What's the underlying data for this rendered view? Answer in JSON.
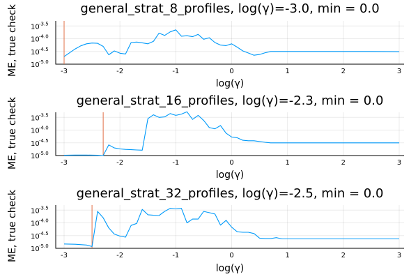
{
  "chart_data": [
    {
      "type": "line",
      "title": "general_strat_8_profiles, log(γ)=-3.0, min = 0.0",
      "xlabel": "log(γ)",
      "ylabel": "ME, true check",
      "xlim": [
        -3,
        3
      ],
      "xticks": [
        "-3",
        "-2",
        "-1",
        "0",
        "1",
        "2",
        "3"
      ],
      "ylim": [
        -5.0,
        -3.3
      ],
      "yticks": [
        {
          "base": "10",
          "exp": "-3.5"
        },
        {
          "base": "10",
          "exp": "-4.0"
        },
        {
          "base": "10",
          "exp": "-4.5"
        },
        {
          "base": "10",
          "exp": "-5.0"
        }
      ],
      "grid": true,
      "series_color": "#009AFA",
      "marker_color": "#E26F46",
      "vline_x": -3.0,
      "x": [
        -3.0,
        -2.9,
        -2.8,
        -2.7,
        -2.6,
        -2.5,
        -2.4,
        -2.3,
        -2.2,
        -2.1,
        -2.0,
        -1.9,
        -1.8,
        -1.7,
        -1.6,
        -1.5,
        -1.4,
        -1.3,
        -1.2,
        -1.1,
        -1.0,
        -0.9,
        -0.8,
        -0.7,
        -0.6,
        -0.5,
        -0.4,
        -0.3,
        -0.2,
        -0.1,
        0.0,
        0.1,
        0.2,
        0.3,
        0.4,
        0.5,
        0.6,
        0.7,
        0.8,
        1.0,
        1.5,
        2.0,
        2.5,
        3.0
      ],
      "y": [
        -4.7,
        -4.55,
        -4.4,
        -4.28,
        -4.2,
        -4.17,
        -4.18,
        -4.3,
        -4.63,
        -4.48,
        -4.57,
        -4.6,
        -4.15,
        -4.13,
        -4.16,
        -4.2,
        -4.1,
        -3.78,
        -3.87,
        -3.73,
        -3.65,
        -3.9,
        -3.88,
        -3.92,
        -3.83,
        -4.02,
        -3.96,
        -4.15,
        -4.25,
        -4.27,
        -4.2,
        -4.33,
        -4.48,
        -4.56,
        -4.65,
        -4.62,
        -4.55,
        -4.5,
        -4.5,
        -4.5,
        -4.5,
        -4.5,
        -4.5,
        -4.51
      ]
    },
    {
      "type": "line",
      "title": "general_strat_16_profiles, log(γ)=-2.3, min = 0.0",
      "xlabel": "log(γ)",
      "ylabel": "ME, true check",
      "xlim": [
        -3,
        3
      ],
      "xticks": [
        "-3",
        "-2",
        "-1",
        "0",
        "1",
        "2",
        "3"
      ],
      "ylim": [
        -5.0,
        -3.3
      ],
      "yticks": [
        {
          "base": "10",
          "exp": "-3.5"
        },
        {
          "base": "10",
          "exp": "-4.0"
        },
        {
          "base": "10",
          "exp": "-4.5"
        },
        {
          "base": "10",
          "exp": "-5.0"
        }
      ],
      "grid": true,
      "series_color": "#009AFA",
      "marker_color": "#E26F46",
      "vline_x": -2.3,
      "x": [
        -3.0,
        -2.8,
        -2.6,
        -2.4,
        -2.3,
        -2.2,
        -2.1,
        -2.0,
        -1.9,
        -1.8,
        -1.7,
        -1.6,
        -1.5,
        -1.4,
        -1.3,
        -1.2,
        -1.1,
        -1.0,
        -0.9,
        -0.8,
        -0.7,
        -0.6,
        -0.5,
        -0.4,
        -0.3,
        -0.2,
        -0.1,
        0.0,
        0.1,
        0.2,
        0.3,
        0.4,
        0.5,
        0.6,
        0.7,
        0.8,
        1.0,
        1.5,
        2.0,
        2.5,
        3.0
      ],
      "y": [
        -4.99,
        -4.98,
        -4.98,
        -4.99,
        -5.0,
        -4.58,
        -4.7,
        -4.74,
        -4.76,
        -4.77,
        -4.78,
        -4.79,
        -3.55,
        -3.4,
        -3.5,
        -3.48,
        -3.35,
        -3.42,
        -3.37,
        -3.28,
        -3.58,
        -3.42,
        -3.62,
        -3.9,
        -3.95,
        -3.82,
        -4.12,
        -4.27,
        -4.3,
        -4.4,
        -4.42,
        -4.42,
        -4.45,
        -4.48,
        -4.5,
        -4.5,
        -4.5,
        -4.5,
        -4.5,
        -4.5,
        -4.5
      ]
    },
    {
      "type": "line",
      "title": "general_strat_32_profiles, log(γ)=-2.5, min = 0.0",
      "xlabel": "log(γ)",
      "ylabel": "ME, true check",
      "xlim": [
        -3,
        3
      ],
      "xticks": [
        "-3",
        "-2",
        "-1",
        "0",
        "1",
        "2",
        "3"
      ],
      "ylim": [
        -5.0,
        -3.3
      ],
      "yticks": [
        {
          "base": "10",
          "exp": "-3.5"
        },
        {
          "base": "10",
          "exp": "-4.0"
        },
        {
          "base": "10",
          "exp": "-4.5"
        },
        {
          "base": "10",
          "exp": "-5.0"
        }
      ],
      "grid": true,
      "series_color": "#009AFA",
      "marker_color": "#E26F46",
      "vline_x": -2.5,
      "x": [
        -3.0,
        -2.8,
        -2.6,
        -2.5,
        -2.4,
        -2.3,
        -2.2,
        -2.1,
        -2.0,
        -1.9,
        -1.8,
        -1.7,
        -1.6,
        -1.5,
        -1.4,
        -1.3,
        -1.2,
        -1.1,
        -1.0,
        -0.9,
        -0.8,
        -0.7,
        -0.6,
        -0.5,
        -0.4,
        -0.3,
        -0.2,
        -0.1,
        0.0,
        0.1,
        0.2,
        0.3,
        0.4,
        0.5,
        0.6,
        0.7,
        0.8,
        0.9,
        1.0,
        1.5,
        2.0,
        2.5,
        3.0
      ],
      "y": [
        -4.83,
        -4.84,
        -4.87,
        -4.93,
        -3.55,
        -3.8,
        -4.2,
        -4.44,
        -4.52,
        -4.56,
        -4.1,
        -4.02,
        -3.47,
        -3.68,
        -3.7,
        -3.71,
        -3.55,
        -3.43,
        -3.45,
        -3.43,
        -4.0,
        -3.85,
        -3.85,
        -3.55,
        -3.6,
        -3.65,
        -4.09,
        -3.9,
        -4.17,
        -4.35,
        -4.37,
        -4.37,
        -4.42,
        -4.6,
        -4.62,
        -4.62,
        -4.58,
        -4.63,
        -4.63,
        -4.63,
        -4.63,
        -4.63,
        -4.63
      ]
    }
  ]
}
